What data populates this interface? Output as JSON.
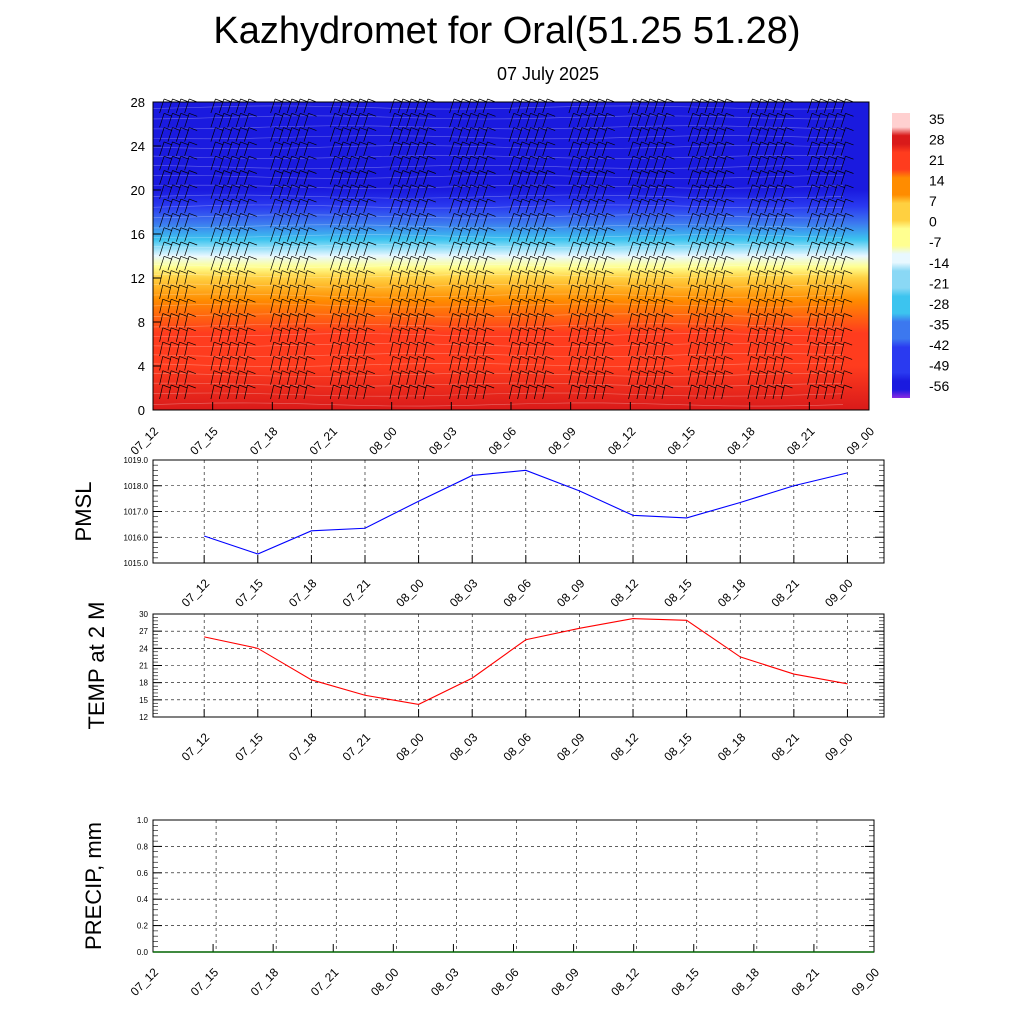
{
  "title": "Kazhydromet for Oral(51.25 51.28)",
  "subtitle": "07 July 2025",
  "time_labels": [
    "07_12",
    "07_15",
    "07_18",
    "07_21",
    "08_00",
    "08_03",
    "08_06",
    "08_09",
    "08_12",
    "08_15",
    "08_18",
    "08_21",
    "09_00"
  ],
  "chart_data": [
    {
      "type": "heatmap",
      "name": "upper-air-cross-section",
      "y_ticks": [
        0,
        4,
        8,
        12,
        16,
        20,
        24,
        28
      ],
      "ylim": [
        0,
        28
      ],
      "colorbar_ticks": [
        "35",
        "28",
        "21",
        "14",
        "7",
        "0",
        "-7",
        "-14",
        "-21",
        "-28",
        "-35",
        "-42",
        "-49",
        "-56"
      ],
      "colorbar_range": [
        -63,
        38
      ],
      "profile": [
        {
          "level": 0,
          "value": 30
        },
        {
          "level": 4,
          "value": 25
        },
        {
          "level": 7,
          "value": 18
        },
        {
          "level": 10,
          "value": 10
        },
        {
          "level": 12,
          "value": 3
        },
        {
          "level": 13,
          "value": -10
        },
        {
          "level": 14,
          "value": -17
        },
        {
          "level": 15.5,
          "value": -28
        },
        {
          "level": 17,
          "value": -40
        },
        {
          "level": 18.5,
          "value": -50
        },
        {
          "level": 20,
          "value": -58
        },
        {
          "level": 24,
          "value": -56
        },
        {
          "level": 28,
          "value": -56
        }
      ],
      "colors": {
        "hot": "#d91a1a",
        "warm": "#ff8c00",
        "neutral": "#ffff90",
        "cool": "#3cc4ef",
        "cold": "#1a1adf",
        "coldest": "#8a2be2"
      },
      "wind_barbs": true
    },
    {
      "type": "line",
      "ylabel": "PMSL",
      "ylim": [
        1015,
        1019
      ],
      "y_ticks": [
        "1015.0",
        "1016.0",
        "1017.0",
        "1018.0",
        "1019.0"
      ],
      "series": [
        {
          "color": "#0000ff",
          "values": [
            1016.05,
            1015.35,
            1016.25,
            1016.35,
            1017.4,
            1018.4,
            1018.6,
            1017.8,
            1016.85,
            1016.75,
            1017.35,
            1018.0,
            1018.5
          ]
        }
      ]
    },
    {
      "type": "line",
      "ylabel": "TEMP at 2 M",
      "ylim": [
        12,
        30
      ],
      "y_ticks": [
        "12",
        "15",
        "18",
        "21",
        "24",
        "27",
        "30"
      ],
      "series": [
        {
          "color": "#ff0000",
          "values": [
            26.0,
            24.0,
            18.5,
            15.8,
            14.2,
            18.8,
            25.5,
            27.5,
            29.2,
            28.9,
            22.5,
            19.5,
            17.8
          ]
        }
      ]
    },
    {
      "type": "line",
      "ylabel": "PRECIP, mm",
      "ylim": [
        0,
        1
      ],
      "y_ticks": [
        "0.0",
        "0.2",
        "0.4",
        "0.6",
        "0.8",
        "1.0"
      ],
      "series": [
        {
          "color": "#006400",
          "values": [
            0,
            0,
            0,
            0,
            0,
            0,
            0,
            0,
            0,
            0,
            0,
            0,
            0
          ]
        }
      ]
    }
  ]
}
